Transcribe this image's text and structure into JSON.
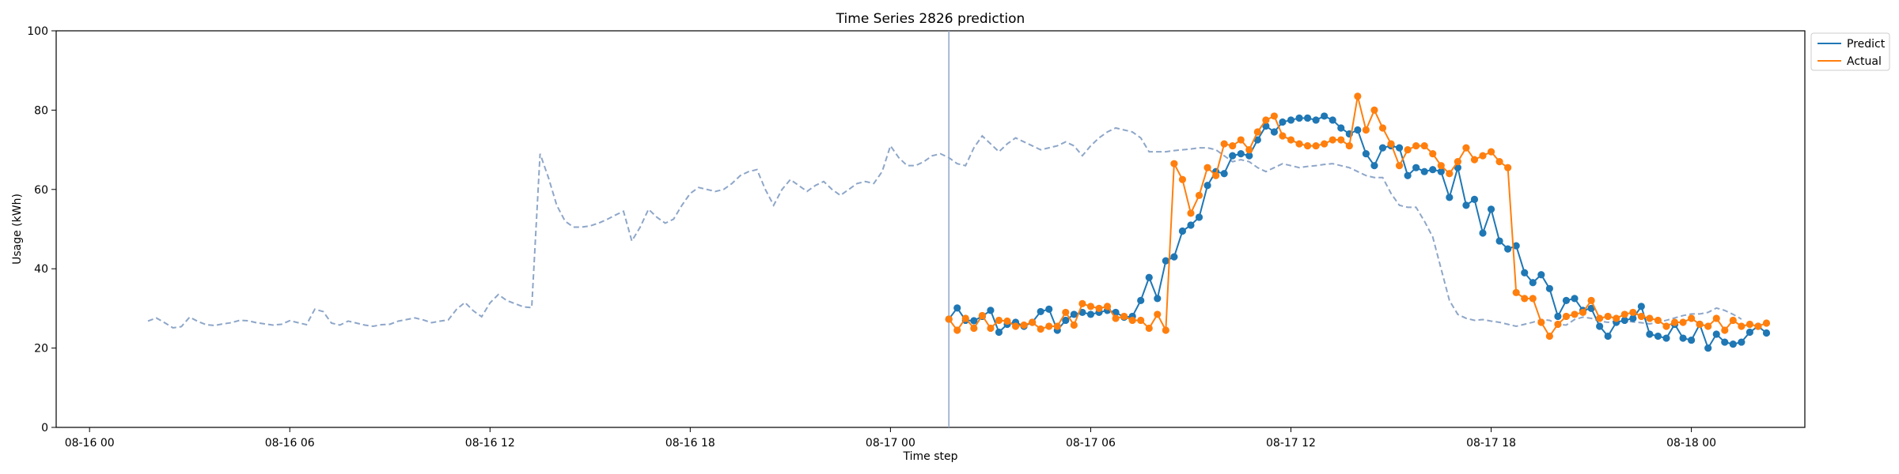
{
  "chart_data": {
    "type": "line",
    "title": "Time Series 2826 prediction",
    "xlabel": "Time step",
    "ylabel": "Usage (kWh)",
    "ylim": [
      0,
      100
    ],
    "xlim": [
      "08-15 23:00",
      "08-18 03:24"
    ],
    "x_ticks": [
      "08-16 00",
      "08-16 06",
      "08-16 12",
      "08-16 18",
      "08-17 00",
      "08-17 06",
      "08-17 12",
      "08-17 18",
      "08-18 00"
    ],
    "y_ticks": [
      0,
      20,
      40,
      60,
      80,
      100
    ],
    "grid": false,
    "legend": {
      "placement": "top-right, outside plot area"
    },
    "forecast_start": "08-17 01:45",
    "colors": {
      "history": "#8ea6c8",
      "predict": "#1f77b4",
      "actual": "#ff7f0e",
      "forecast_line": "#8ea6c8"
    },
    "series": [
      {
        "role": "history",
        "name": "",
        "style": "dashed",
        "markers": false,
        "start": "08-16 01:45",
        "step_minutes": 15,
        "values": [
          26.8,
          27.6,
          26.4,
          25.1,
          25.4,
          27.8,
          26.7,
          25.9,
          25.7,
          26.1,
          26.4,
          27.0,
          26.9,
          26.4,
          26.1,
          25.8,
          26.0,
          26.9,
          26.4,
          25.9,
          29.8,
          29.2,
          26.3,
          25.8,
          26.8,
          26.3,
          25.8,
          25.5,
          25.9,
          26.0,
          26.8,
          27.2,
          27.6,
          27.1,
          26.4,
          26.8,
          27.1,
          29.8,
          31.5,
          29.4,
          27.9,
          31.4,
          33.5,
          32.0,
          31.2,
          30.4,
          30.2,
          69.0,
          63.0,
          56.0,
          52.0,
          50.5,
          50.5,
          50.8,
          51.5,
          52.4,
          53.5,
          54.5,
          47.0,
          50.5,
          55.0,
          53.0,
          51.5,
          52.5,
          56.0,
          59.0,
          60.5,
          60.0,
          59.5,
          60.0,
          61.5,
          63.5,
          64.5,
          65.0,
          60.0,
          56.0,
          60.0,
          62.5,
          61.0,
          59.5,
          61.0,
          62.0,
          60.0,
          58.5,
          60.0,
          61.5,
          62.0,
          61.5,
          64.5,
          71.0,
          68.0,
          66.0,
          66.0,
          67.0,
          68.5,
          69.0,
          68.0,
          66.5,
          66.0,
          70.5,
          73.5,
          71.5,
          69.5,
          71.5,
          73.0,
          72.0,
          71.0,
          70.0,
          70.5,
          71.0,
          72.0,
          71.0,
          68.5,
          71.0,
          73.0,
          74.5,
          75.5,
          75.0,
          74.5,
          73.0,
          69.5,
          69.5,
          69.5,
          69.8,
          70.0,
          70.2,
          70.5,
          70.5,
          70.0,
          68.5,
          67.0,
          67.5,
          67.0,
          65.5,
          64.5,
          65.5,
          66.5,
          66.0,
          65.5,
          65.8,
          66.0,
          66.3,
          66.5,
          66.0,
          65.5,
          64.5,
          63.5,
          63.0,
          63.0,
          59.0,
          56.0,
          55.5,
          55.5,
          52.0,
          48.0,
          40.0,
          32.0,
          28.5,
          27.5,
          27.0,
          27.2,
          26.8,
          26.5,
          26.0,
          25.5,
          26.0,
          26.5,
          27.2,
          27.0,
          26.0,
          25.8,
          27.2,
          27.8,
          27.5,
          26.8,
          26.5,
          26.8,
          26.9,
          26.6,
          26.4,
          26.1,
          26.5,
          27.0,
          27.6,
          28.2,
          28.6,
          28.6,
          29.0,
          30.1,
          29.5,
          28.5,
          27.3
        ]
      },
      {
        "role": "predict",
        "name": "Predict",
        "style": "solid",
        "markers": true,
        "start": "08-17 01:45",
        "step_minutes": 15,
        "values": [
          27.3,
          30.1,
          27.0,
          26.9,
          28.0,
          29.5,
          24.0,
          26.0,
          26.5,
          25.5,
          26.5,
          29.2,
          29.8,
          24.5,
          27.0,
          28.5,
          29.0,
          28.5,
          29.0,
          29.5,
          29.0,
          27.8,
          28.0,
          32.0,
          37.8,
          32.5,
          42.0,
          43.0,
          49.5,
          51.0,
          53.0,
          61.0,
          64.5,
          64.0,
          68.5,
          69.0,
          68.5,
          72.5,
          76.0,
          74.5,
          77.0,
          77.5,
          78.0,
          78.0,
          77.5,
          78.5,
          77.5,
          75.5,
          74.0,
          75.0,
          69.0,
          66.0,
          70.5,
          71.0,
          70.5,
          63.5,
          65.5,
          64.5,
          65.0,
          64.5,
          58.0,
          65.5,
          56.0,
          57.5,
          49.0,
          55.0,
          47.0,
          45.0,
          45.8,
          39.0,
          36.5,
          38.5,
          35.0,
          28.0,
          32.0,
          32.5,
          29.5,
          30.0,
          25.5,
          23.0,
          26.5,
          27.0,
          27.5,
          30.5,
          23.5,
          23.0,
          22.5,
          26.0,
          22.5,
          22.0,
          26.0,
          20.0,
          23.5,
          21.5,
          21.0,
          21.5,
          24.0,
          25.5,
          23.8
        ]
      },
      {
        "role": "actual",
        "name": "Actual",
        "style": "solid",
        "markers": true,
        "start": "08-17 01:45",
        "step_minutes": 15,
        "values": [
          27.3,
          24.5,
          27.5,
          25.0,
          28.2,
          25.0,
          27.0,
          26.8,
          25.5,
          25.8,
          26.5,
          24.8,
          25.5,
          25.5,
          29.0,
          25.8,
          31.2,
          30.5,
          30.0,
          30.5,
          27.5,
          28.0,
          27.0,
          27.0,
          25.0,
          28.5,
          24.5,
          66.5,
          62.5,
          54.0,
          58.5,
          65.5,
          63.5,
          71.5,
          71.0,
          72.5,
          70.0,
          74.5,
          77.5,
          78.5,
          73.5,
          72.5,
          71.5,
          71.0,
          71.0,
          71.5,
          72.5,
          72.5,
          71.0,
          83.5,
          75.0,
          80.0,
          75.5,
          71.5,
          66.0,
          70.0,
          71.0,
          71.0,
          69.0,
          66.0,
          64.0,
          67.0,
          70.5,
          67.5,
          68.5,
          69.5,
          67.0,
          65.5,
          34.0,
          32.5,
          32.5,
          26.5,
          23.0,
          26.0,
          28.0,
          28.5,
          29.0,
          32.0,
          27.5,
          28.0,
          27.5,
          28.5,
          29.0,
          28.0,
          27.5,
          27.0,
          25.5,
          26.5,
          26.5,
          27.5,
          26.0,
          25.5,
          27.5,
          24.5,
          27.0,
          25.5,
          26.0,
          25.5,
          26.3
        ]
      }
    ]
  }
}
